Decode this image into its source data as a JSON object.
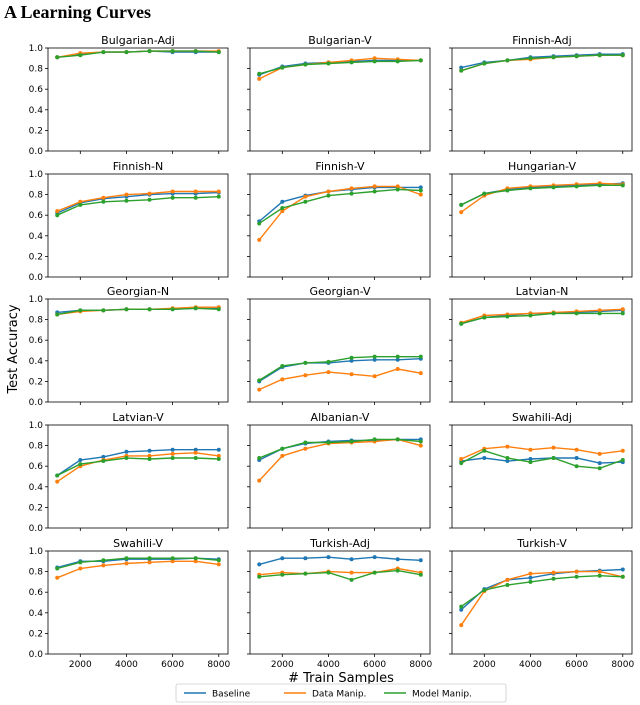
{
  "heading": "A   Learning Curves",
  "chart_data": {
    "type": "line",
    "ylabel": "Test Accuracy",
    "xlabel": "# Train Samples",
    "x": [
      1000,
      2000,
      3000,
      4000,
      5000,
      6000,
      7000,
      8000
    ],
    "xticks": [
      2000,
      4000,
      6000,
      8000
    ],
    "xlim": [
      600,
      8400
    ],
    "ylim": [
      0.0,
      1.0
    ],
    "yticks": [
      0.0,
      0.2,
      0.4,
      0.6,
      0.8,
      1.0
    ],
    "series_names": [
      "Baseline",
      "Data Manip.",
      "Model Manip."
    ],
    "colors": {
      "Baseline": "#1f77b4",
      "Data Manip.": "#ff7f0e",
      "Model Manip.": "#2ca02c"
    },
    "legend_position": "bottom-center",
    "grid": false,
    "panels": [
      {
        "title": "Bulgarian-Adj",
        "series": [
          {
            "name": "Baseline",
            "values": [
              0.91,
              0.94,
              0.96,
              0.96,
              0.97,
              0.96,
              0.96,
              0.96
            ]
          },
          {
            "name": "Data Manip.",
            "values": [
              0.91,
              0.95,
              0.96,
              0.96,
              0.97,
              0.97,
              0.97,
              0.97
            ]
          },
          {
            "name": "Model Manip.",
            "values": [
              0.91,
              0.93,
              0.96,
              0.96,
              0.97,
              0.97,
              0.97,
              0.96
            ]
          }
        ]
      },
      {
        "title": "Bulgarian-V",
        "series": [
          {
            "name": "Baseline",
            "values": [
              0.74,
              0.82,
              0.85,
              0.86,
              0.87,
              0.88,
              0.88,
              0.88
            ]
          },
          {
            "name": "Data Manip.",
            "values": [
              0.7,
              0.81,
              0.84,
              0.86,
              0.88,
              0.9,
              0.89,
              0.88
            ]
          },
          {
            "name": "Model Manip.",
            "values": [
              0.75,
              0.81,
              0.84,
              0.85,
              0.86,
              0.87,
              0.87,
              0.88
            ]
          }
        ]
      },
      {
        "title": "Finnish-Adj",
        "series": [
          {
            "name": "Baseline",
            "values": [
              0.81,
              0.86,
              0.88,
              0.91,
              0.92,
              0.93,
              0.94,
              0.94
            ]
          },
          {
            "name": "Data Manip.",
            "values": [
              0.78,
              0.85,
              0.88,
              0.89,
              0.91,
              0.92,
              0.93,
              0.93
            ]
          },
          {
            "name": "Model Manip.",
            "values": [
              0.78,
              0.85,
              0.88,
              0.9,
              0.91,
              0.92,
              0.93,
              0.93
            ]
          }
        ]
      },
      {
        "title": "Finnish-N",
        "series": [
          {
            "name": "Baseline",
            "values": [
              0.62,
              0.72,
              0.76,
              0.78,
              0.8,
              0.81,
              0.81,
              0.82
            ]
          },
          {
            "name": "Data Manip.",
            "values": [
              0.64,
              0.73,
              0.77,
              0.8,
              0.81,
              0.83,
              0.83,
              0.83
            ]
          },
          {
            "name": "Model Manip.",
            "values": [
              0.6,
              0.7,
              0.73,
              0.74,
              0.75,
              0.77,
              0.77,
              0.78
            ]
          }
        ]
      },
      {
        "title": "Finnish-V",
        "series": [
          {
            "name": "Baseline",
            "values": [
              0.54,
              0.73,
              0.79,
              0.83,
              0.85,
              0.87,
              0.87,
              0.87
            ]
          },
          {
            "name": "Data Manip.",
            "values": [
              0.36,
              0.64,
              0.78,
              0.83,
              0.86,
              0.88,
              0.88,
              0.8
            ]
          },
          {
            "name": "Model Manip.",
            "values": [
              0.52,
              0.67,
              0.73,
              0.79,
              0.81,
              0.83,
              0.85,
              0.84
            ]
          }
        ]
      },
      {
        "title": "Hungarian-V",
        "series": [
          {
            "name": "Baseline",
            "values": [
              0.7,
              0.81,
              0.85,
              0.87,
              0.88,
              0.89,
              0.9,
              0.91
            ]
          },
          {
            "name": "Data Manip.",
            "values": [
              0.63,
              0.79,
              0.86,
              0.88,
              0.89,
              0.9,
              0.91,
              0.9
            ]
          },
          {
            "name": "Model Manip.",
            "values": [
              0.7,
              0.81,
              0.84,
              0.86,
              0.87,
              0.88,
              0.89,
              0.89
            ]
          }
        ]
      },
      {
        "title": "Georgian-N",
        "series": [
          {
            "name": "Baseline",
            "values": [
              0.87,
              0.89,
              0.89,
              0.9,
              0.9,
              0.9,
              0.91,
              0.91
            ]
          },
          {
            "name": "Data Manip.",
            "values": [
              0.85,
              0.88,
              0.89,
              0.9,
              0.9,
              0.91,
              0.92,
              0.92
            ]
          },
          {
            "name": "Model Manip.",
            "values": [
              0.85,
              0.89,
              0.89,
              0.9,
              0.9,
              0.9,
              0.91,
              0.9
            ]
          }
        ]
      },
      {
        "title": "Georgian-V",
        "series": [
          {
            "name": "Baseline",
            "values": [
              0.2,
              0.34,
              0.38,
              0.38,
              0.4,
              0.41,
              0.41,
              0.42
            ]
          },
          {
            "name": "Data Manip.",
            "values": [
              0.12,
              0.22,
              0.26,
              0.29,
              0.27,
              0.25,
              0.32,
              0.28
            ]
          },
          {
            "name": "Model Manip.",
            "values": [
              0.21,
              0.35,
              0.38,
              0.39,
              0.43,
              0.44,
              0.44,
              0.44
            ]
          }
        ]
      },
      {
        "title": "Latvian-N",
        "series": [
          {
            "name": "Baseline",
            "values": [
              0.76,
              0.82,
              0.84,
              0.86,
              0.86,
              0.87,
              0.88,
              0.89
            ]
          },
          {
            "name": "Data Manip.",
            "values": [
              0.77,
              0.84,
              0.85,
              0.86,
              0.87,
              0.88,
              0.89,
              0.9
            ]
          },
          {
            "name": "Model Manip.",
            "values": [
              0.76,
              0.82,
              0.83,
              0.84,
              0.86,
              0.86,
              0.86,
              0.86
            ]
          }
        ]
      },
      {
        "title": "Latvian-V",
        "series": [
          {
            "name": "Baseline",
            "values": [
              0.51,
              0.66,
              0.69,
              0.74,
              0.75,
              0.76,
              0.76,
              0.76
            ]
          },
          {
            "name": "Data Manip.",
            "values": [
              0.45,
              0.6,
              0.66,
              0.7,
              0.7,
              0.72,
              0.73,
              0.7
            ]
          },
          {
            "name": "Model Manip.",
            "values": [
              0.51,
              0.62,
              0.65,
              0.68,
              0.67,
              0.68,
              0.68,
              0.67
            ]
          }
        ]
      },
      {
        "title": "Albanian-V",
        "series": [
          {
            "name": "Baseline",
            "values": [
              0.66,
              0.77,
              0.82,
              0.84,
              0.85,
              0.85,
              0.86,
              0.86
            ]
          },
          {
            "name": "Data Manip.",
            "values": [
              0.46,
              0.7,
              0.77,
              0.82,
              0.83,
              0.84,
              0.86,
              0.8
            ]
          },
          {
            "name": "Model Manip.",
            "values": [
              0.68,
              0.77,
              0.83,
              0.83,
              0.84,
              0.86,
              0.86,
              0.84
            ]
          }
        ]
      },
      {
        "title": "Swahili-Adj",
        "series": [
          {
            "name": "Baseline",
            "values": [
              0.65,
              0.68,
              0.65,
              0.67,
              0.68,
              0.68,
              0.63,
              0.64
            ]
          },
          {
            "name": "Data Manip.",
            "values": [
              0.67,
              0.77,
              0.79,
              0.76,
              0.78,
              0.76,
              0.72,
              0.75
            ]
          },
          {
            "name": "Model Manip.",
            "values": [
              0.63,
              0.75,
              0.68,
              0.64,
              0.68,
              0.6,
              0.58,
              0.66
            ]
          }
        ]
      },
      {
        "title": "Swahili-V",
        "series": [
          {
            "name": "Baseline",
            "values": [
              0.84,
              0.9,
              0.9,
              0.92,
              0.92,
              0.92,
              0.93,
              0.92
            ]
          },
          {
            "name": "Data Manip.",
            "values": [
              0.74,
              0.83,
              0.86,
              0.88,
              0.89,
              0.9,
              0.9,
              0.87
            ]
          },
          {
            "name": "Model Manip.",
            "values": [
              0.83,
              0.89,
              0.91,
              0.93,
              0.93,
              0.93,
              0.93,
              0.91
            ]
          }
        ]
      },
      {
        "title": "Turkish-Adj",
        "series": [
          {
            "name": "Baseline",
            "values": [
              0.87,
              0.93,
              0.93,
              0.94,
              0.92,
              0.94,
              0.92,
              0.91
            ]
          },
          {
            "name": "Data Manip.",
            "values": [
              0.77,
              0.79,
              0.78,
              0.8,
              0.79,
              0.79,
              0.83,
              0.79
            ]
          },
          {
            "name": "Model Manip.",
            "values": [
              0.75,
              0.77,
              0.78,
              0.79,
              0.72,
              0.79,
              0.81,
              0.77
            ]
          }
        ]
      },
      {
        "title": "Turkish-V",
        "series": [
          {
            "name": "Baseline",
            "values": [
              0.43,
              0.63,
              0.72,
              0.74,
              0.78,
              0.8,
              0.81,
              0.82
            ]
          },
          {
            "name": "Data Manip.",
            "values": [
              0.28,
              0.61,
              0.72,
              0.78,
              0.79,
              0.8,
              0.8,
              0.75
            ]
          },
          {
            "name": "Model Manip.",
            "values": [
              0.46,
              0.62,
              0.67,
              0.7,
              0.73,
              0.75,
              0.76,
              0.75
            ]
          }
        ]
      }
    ]
  }
}
